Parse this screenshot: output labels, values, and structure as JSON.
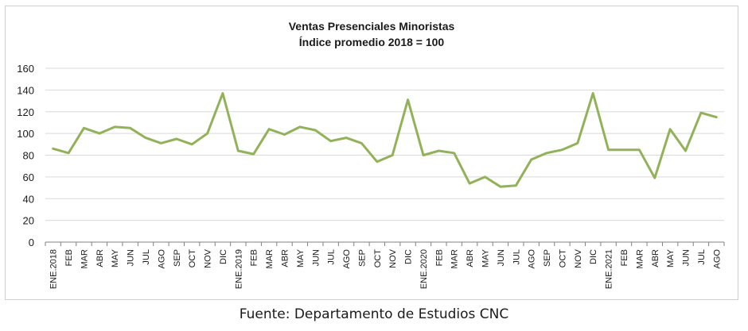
{
  "chart_data": {
    "type": "line",
    "title": "Ventas Presenciales Minoristas",
    "subtitle": "Índice promedio 2018 = 100",
    "xlabel": "",
    "ylabel": "",
    "ylim": [
      0,
      160
    ],
    "yticks": [
      0,
      20,
      40,
      60,
      80,
      100,
      120,
      140,
      160
    ],
    "grid": true,
    "legend": "none",
    "color": "#92b25a",
    "categories": [
      "ENE.2018",
      "FEB",
      "MAR",
      "ABR",
      "MAY",
      "JUN",
      "JUL",
      "AGO",
      "SEP",
      "OCT",
      "NOV",
      "DIC",
      "ENE.2019",
      "FEB",
      "MAR",
      "ABR",
      "MAY",
      "JUN",
      "JUL",
      "AGO",
      "SEP",
      "OCT",
      "NOV",
      "DIC",
      "ENE.2020",
      "FEB",
      "MAR",
      "ABR",
      "MAY",
      "JUN",
      "JUL",
      "AGO",
      "SEP",
      "OCT",
      "NOV",
      "DIC",
      "ENE.2021",
      "FEB",
      "MAR",
      "ABR",
      "MAY",
      "JUN",
      "JUL",
      "AGO"
    ],
    "series": [
      {
        "values": [
          86,
          82,
          105,
          100,
          106,
          105,
          96,
          91,
          95,
          90,
          100,
          137,
          84,
          81,
          104,
          99,
          106,
          103,
          93,
          96,
          91,
          74,
          80,
          131,
          80,
          84,
          82,
          54,
          60,
          51,
          52,
          76,
          82,
          85,
          91,
          137,
          85,
          85,
          85,
          59,
          104,
          84,
          119,
          115
        ]
      }
    ]
  },
  "footer": {
    "source": "Fuente: Departamento de Estudios CNC"
  }
}
